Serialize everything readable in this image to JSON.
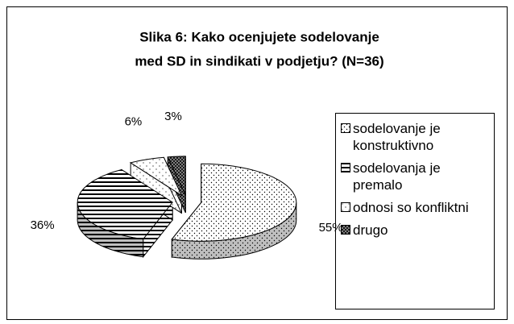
{
  "chart_data": {
    "type": "pie3d",
    "title": [
      "Slika 6: Kako ocenjujete sodelovanje",
      "med SD in sindikati v podjetju? (N=36)"
    ],
    "categories": [
      "sodelovanje je konstruktivno",
      "sodelovanja je premalo",
      "odnosi so konfliktni",
      "drugo"
    ],
    "values": [
      55,
      36,
      6,
      3
    ],
    "value_labels": [
      "55%",
      "36%",
      "6%",
      "3%"
    ],
    "colors": [
      "#ffffff",
      "#ffffff",
      "#ffffff",
      "#9a9a9a"
    ],
    "legend": "right"
  }
}
